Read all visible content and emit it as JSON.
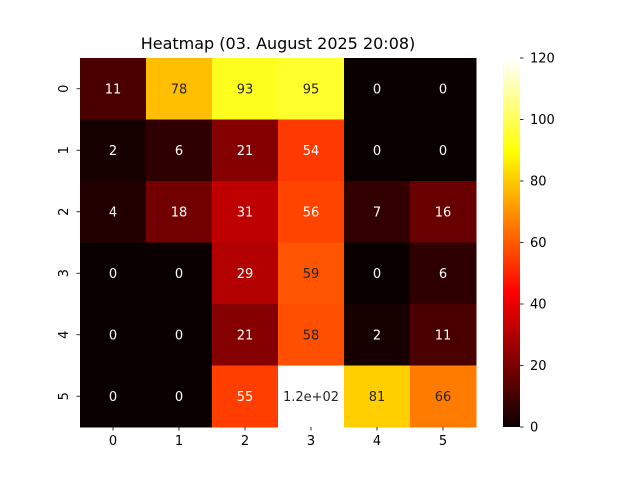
{
  "chart_data": {
    "type": "heatmap",
    "title": "Heatmap (03. August 2025 20:08)",
    "xlabel": "",
    "ylabel": "",
    "x_categories": [
      "0",
      "1",
      "2",
      "3",
      "4",
      "5"
    ],
    "y_categories": [
      "0",
      "1",
      "2",
      "3",
      "4",
      "5"
    ],
    "values": [
      [
        11,
        78,
        93,
        95,
        0,
        0
      ],
      [
        2,
        6,
        21,
        54,
        0,
        0
      ],
      [
        4,
        18,
        31,
        56,
        7,
        16
      ],
      [
        0,
        0,
        29,
        59,
        0,
        6
      ],
      [
        0,
        0,
        21,
        58,
        2,
        11
      ],
      [
        0,
        0,
        55,
        120,
        81,
        66
      ]
    ],
    "annotations": [
      [
        "11",
        "78",
        "93",
        "95",
        "0",
        "0"
      ],
      [
        "2",
        "6",
        "21",
        "54",
        "0",
        "0"
      ],
      [
        "4",
        "18",
        "31",
        "56",
        "7",
        "16"
      ],
      [
        "0",
        "0",
        "29",
        "59",
        "0",
        "6"
      ],
      [
        "0",
        "0",
        "21",
        "58",
        "2",
        "11"
      ],
      [
        "0",
        "0",
        "55",
        "1.2e+02",
        "81",
        "66"
      ]
    ],
    "colormap": "hot",
    "vmin": 0,
    "vmax": 120,
    "colorbar_ticks": [
      "0",
      "20",
      "40",
      "60",
      "80",
      "100",
      "120"
    ],
    "grid": false,
    "legend": "colorbar-right"
  }
}
